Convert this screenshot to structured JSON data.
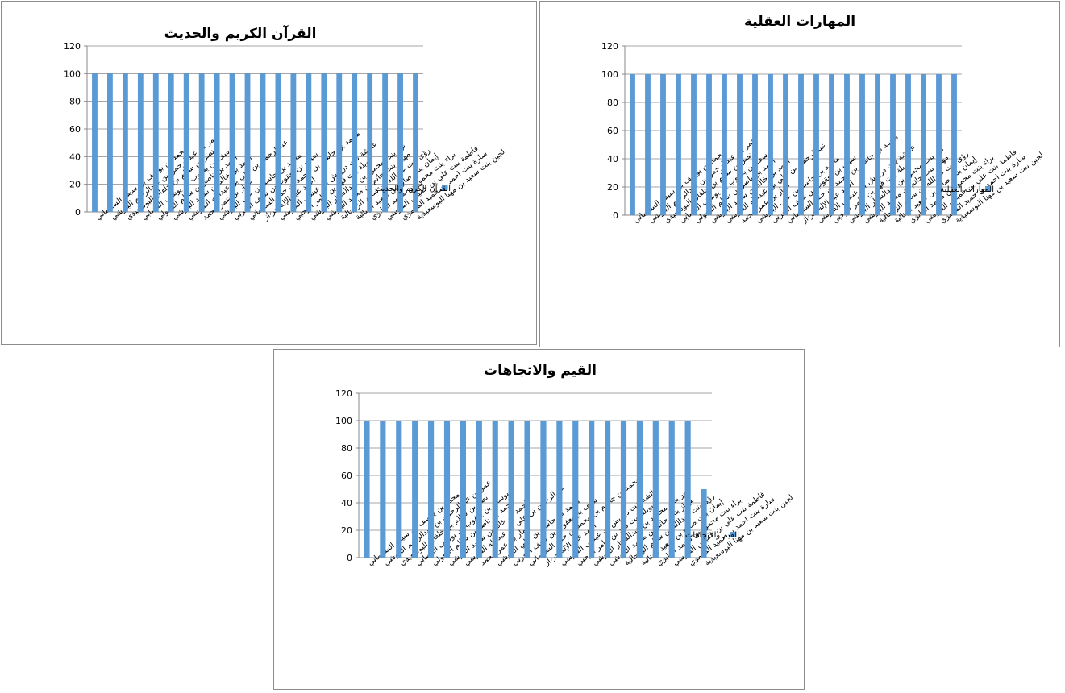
{
  "colors": {
    "bar": "#5b9bd5",
    "grid": "#888888",
    "border": "#8c8c8c"
  },
  "categories": [
    "محمد بن يوسف بن سيف السليماني",
    "عمر بن عبدالرحمن بن عبدالرحيم البلوشي",
    "نصر بن سالم بن خلفان البوسعيدي",
    "يوسف بن يعقوب بن يوسف القصابي",
    "احمد بن ناصر بن سالم المعولي",
    "احمد بن خالد بن سعيد البلوشي",
    "عبدالرحمن بن علي بن عبدالله الفارسي",
    "عمار بن عمر محمد",
    "محمد بن جاسم بن علي البلوشي",
    "سيف بن يعقوب بن سيف اليعربي",
    "محمد بن جاسم بن محمد بن حمد السليماني",
    "احمد عبد الإله حر از",
    "عائشة بنت درويش بن عيسى الفارسي",
    "نويلة بنت فهد بن عامر الرحبي",
    "نور بنت محمود بن عبدالستار البلوشي",
    "مهياز بنت حاتم بن محمد البلوشي",
    "رؤى بنت عبدالله بن سالم الزدجالية",
    "إيمان بنت صالح بن سعيد الهنائية",
    "براء بنت محمود بن محمد الغابري",
    "فاطمة بنت علي بن خميس الفارسي",
    "سارة بنت احمد بن حميد المعمري",
    "لجين بنت سعيد بن مهنا البوسعيدية"
  ],
  "charts": [
    {
      "type": "bar",
      "title": "القرآن الكريم والحديث",
      "legend": "القرآن الكريم والحديث",
      "legend_position": "right",
      "y_ticks": [
        "120",
        "100",
        "80",
        "60",
        "40",
        "20",
        "0"
      ],
      "ylim": [
        0,
        120
      ],
      "values": [
        100,
        100,
        100,
        100,
        100,
        100,
        100,
        100,
        100,
        100,
        100,
        100,
        100,
        100,
        100,
        100,
        100,
        100,
        100,
        100,
        100,
        100
      ]
    },
    {
      "type": "bar",
      "title": "المهارات العقلية",
      "legend": "المهارات العقلية",
      "legend_position": "right",
      "y_ticks": [
        "120",
        "100",
        "80",
        "60",
        "40",
        "20",
        "0"
      ],
      "ylim": [
        0,
        120
      ],
      "values": [
        100,
        100,
        100,
        100,
        100,
        100,
        100,
        100,
        100,
        100,
        100,
        100,
        100,
        100,
        100,
        100,
        100,
        100,
        100,
        100,
        100,
        100
      ]
    },
    {
      "type": "bar",
      "title": "القيم والاتجاهات",
      "legend": "القيم والاتجاهات",
      "legend_position": "right",
      "y_ticks": [
        "120",
        "100",
        "80",
        "60",
        "40",
        "20",
        "0"
      ],
      "ylim": [
        0,
        120
      ],
      "values": [
        100,
        100,
        100,
        100,
        100,
        100,
        100,
        100,
        100,
        100,
        100,
        100,
        100,
        100,
        100,
        100,
        100,
        100,
        100,
        100,
        100,
        50
      ]
    }
  ]
}
